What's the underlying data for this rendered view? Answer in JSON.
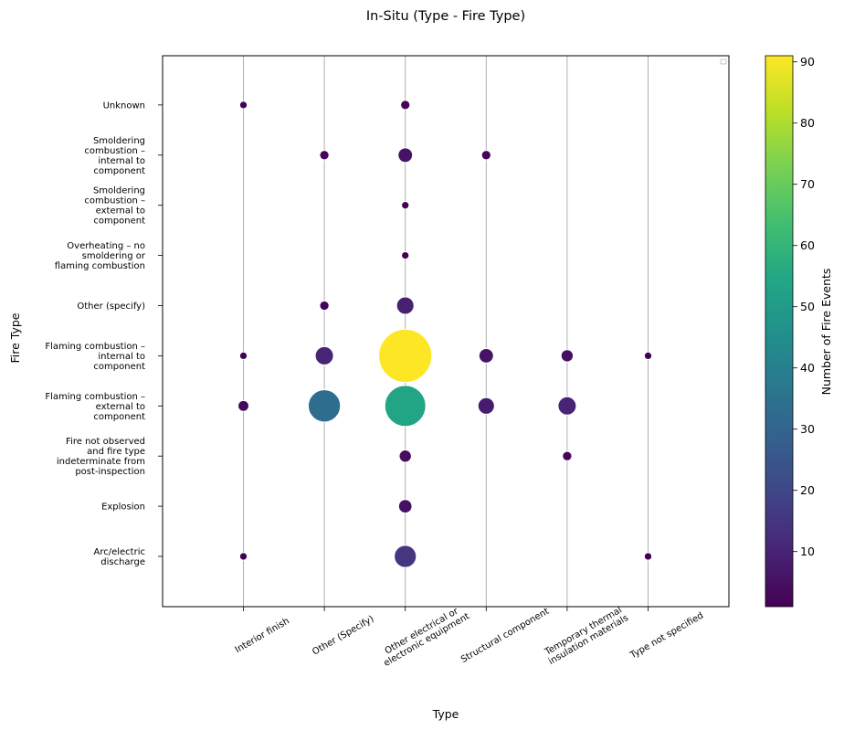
{
  "chart_data": {
    "type": "scatter",
    "title": "In-Situ (Type - Fire Type)",
    "xlabel": "Type",
    "ylabel": "Fire Type",
    "x_categories": [
      [
        "Interior finish"
      ],
      [
        "Other (Specify)"
      ],
      [
        "Other electrical or",
        "electronic equipment"
      ],
      [
        "Structural component"
      ],
      [
        "Temporary thermal",
        "insulation materials"
      ],
      [
        "Type not specified"
      ]
    ],
    "y_categories": [
      [
        "Arc/electric",
        "discharge"
      ],
      [
        "Explosion"
      ],
      [
        "Fire not observed",
        "and fire type",
        "indeterminate from",
        "post-inspection"
      ],
      [
        "Flaming combustion –",
        "external to",
        "component"
      ],
      [
        "Flaming combustion –",
        "internal to",
        "component"
      ],
      [
        "Other (specify)"
      ],
      [
        "Overheating – no",
        "smoldering or",
        "flaming combustion"
      ],
      [
        "Smoldering",
        "combustion –",
        "external to",
        "component"
      ],
      [
        "Smoldering",
        "combustion –",
        "internal to",
        "component"
      ],
      [
        "Unknown"
      ]
    ],
    "points": [
      {
        "x": 0,
        "y": 0,
        "value": 1
      },
      {
        "x": 0,
        "y": 3,
        "value": 3
      },
      {
        "x": 0,
        "y": 4,
        "value": 1
      },
      {
        "x": 0,
        "y": 9,
        "value": 1
      },
      {
        "x": 1,
        "y": 3,
        "value": 33
      },
      {
        "x": 1,
        "y": 4,
        "value": 10
      },
      {
        "x": 1,
        "y": 5,
        "value": 2
      },
      {
        "x": 1,
        "y": 8,
        "value": 2
      },
      {
        "x": 2,
        "y": 0,
        "value": 15
      },
      {
        "x": 2,
        "y": 1,
        "value": 5
      },
      {
        "x": 2,
        "y": 2,
        "value": 4
      },
      {
        "x": 2,
        "y": 3,
        "value": 54
      },
      {
        "x": 2,
        "y": 4,
        "value": 91
      },
      {
        "x": 2,
        "y": 5,
        "value": 9
      },
      {
        "x": 2,
        "y": 6,
        "value": 1
      },
      {
        "x": 2,
        "y": 7,
        "value": 1
      },
      {
        "x": 2,
        "y": 8,
        "value": 6
      },
      {
        "x": 2,
        "y": 9,
        "value": 2
      },
      {
        "x": 3,
        "y": 3,
        "value": 8
      },
      {
        "x": 3,
        "y": 4,
        "value": 6
      },
      {
        "x": 3,
        "y": 8,
        "value": 2
      },
      {
        "x": 4,
        "y": 2,
        "value": 2
      },
      {
        "x": 4,
        "y": 3,
        "value": 10
      },
      {
        "x": 4,
        "y": 4,
        "value": 4
      },
      {
        "x": 5,
        "y": 0,
        "value": 1
      },
      {
        "x": 5,
        "y": 4,
        "value": 1
      }
    ],
    "colorbar": {
      "label": "Number of Fire Events",
      "range": [
        1,
        91
      ],
      "ticks": [
        10,
        20,
        30,
        40,
        50,
        60,
        70,
        80,
        90
      ],
      "colormap": "viridis"
    },
    "grid": "vertical",
    "legend": "top-right (empty)"
  }
}
